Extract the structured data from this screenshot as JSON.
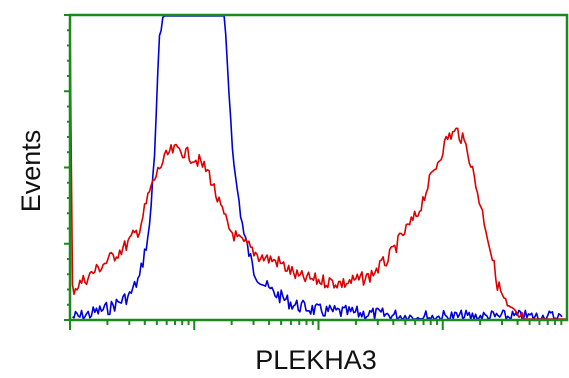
{
  "chart_data": {
    "type": "line",
    "title": "",
    "xlabel": "PLEKHA3",
    "ylabel": "Events",
    "xscale": "log",
    "xlim": [
      0,
      100
    ],
    "ylim": [
      0,
      100
    ],
    "grid": false,
    "legend": "none",
    "frame_color": "#1a8a1a",
    "series": [
      {
        "color": "#0000dd",
        "x": [
          0.5,
          2,
          4,
          6,
          8,
          10,
          12,
          14,
          16,
          17,
          18,
          19,
          20,
          21,
          22,
          23,
          25,
          27,
          29,
          31,
          33,
          35,
          37,
          40,
          45,
          50,
          60,
          70,
          80,
          90,
          99
        ],
        "y": [
          1,
          1,
          2,
          3,
          4,
          6,
          8,
          14,
          30,
          55,
          92,
          100,
          100,
          100,
          100,
          100,
          100,
          100,
          100,
          100,
          50,
          28,
          16,
          10,
          5,
          3,
          2,
          1,
          1,
          1,
          1
        ]
      },
      {
        "color": "#dd0000",
        "x": [
          0,
          0.5,
          2,
          5,
          8,
          11,
          14,
          16,
          18,
          20,
          22,
          24,
          26,
          28,
          30,
          32,
          34,
          36,
          38,
          42,
          46,
          50,
          55,
          60,
          64,
          67,
          70,
          72,
          74,
          76,
          78,
          80,
          82,
          84,
          86,
          88,
          90,
          92,
          94,
          96,
          98,
          100
        ],
        "y": [
          100,
          10,
          12,
          16,
          20,
          24,
          30,
          42,
          50,
          55,
          56,
          54,
          52,
          48,
          38,
          30,
          26,
          24,
          21,
          19,
          14,
          13,
          12,
          14,
          20,
          28,
          35,
          44,
          52,
          60,
          62,
          56,
          42,
          28,
          12,
          4,
          1,
          0,
          0,
          0,
          0,
          0
        ]
      }
    ]
  }
}
